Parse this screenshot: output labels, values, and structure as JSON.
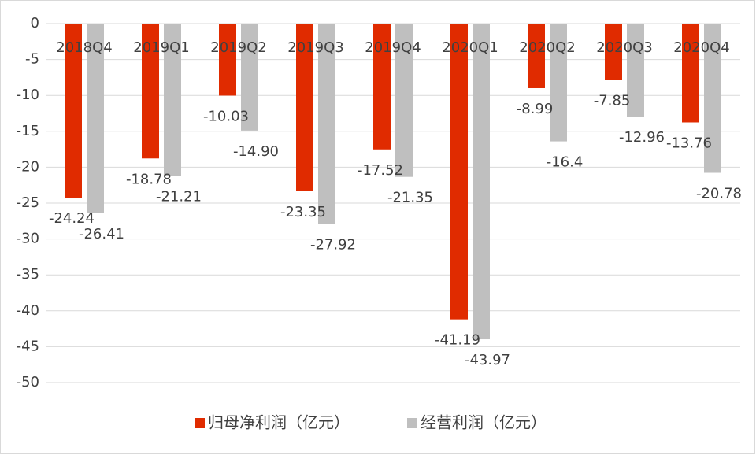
{
  "chart_data": {
    "type": "bar",
    "categories": [
      "2018Q4",
      "2019Q1",
      "2019Q2",
      "2019Q3",
      "2019Q4",
      "2020Q1",
      "2020Q2",
      "2020Q3",
      "2020Q4"
    ],
    "series": [
      {
        "name": "归母净利润（亿元）",
        "color": "#e02b00",
        "values": [
          -24.24,
          -18.78,
          -10.03,
          -23.35,
          -17.52,
          -41.19,
          -8.99,
          -7.85,
          -13.76
        ],
        "value_labels": [
          "-24.24",
          "-18.78",
          "-10.03",
          "-23.35",
          "-17.52",
          "-41.19",
          "-8.99",
          "-7.85",
          "-13.76"
        ]
      },
      {
        "name": "经营利润（亿元）",
        "color": "#bfbfbf",
        "values": [
          -26.41,
          -21.21,
          -14.9,
          -27.92,
          -21.35,
          -43.97,
          -16.4,
          -12.96,
          -20.78
        ],
        "value_labels": [
          "-26.41",
          "-21.21",
          "-14.90",
          "-27.92",
          "-21.35",
          "-43.97",
          "-16.4",
          "-12.96",
          "-20.78"
        ]
      }
    ],
    "ylim": [
      -50,
      0
    ],
    "yticks": [
      0,
      -5,
      -10,
      -15,
      -20,
      -25,
      -30,
      -35,
      -40,
      -45,
      -50
    ],
    "grid": true
  }
}
